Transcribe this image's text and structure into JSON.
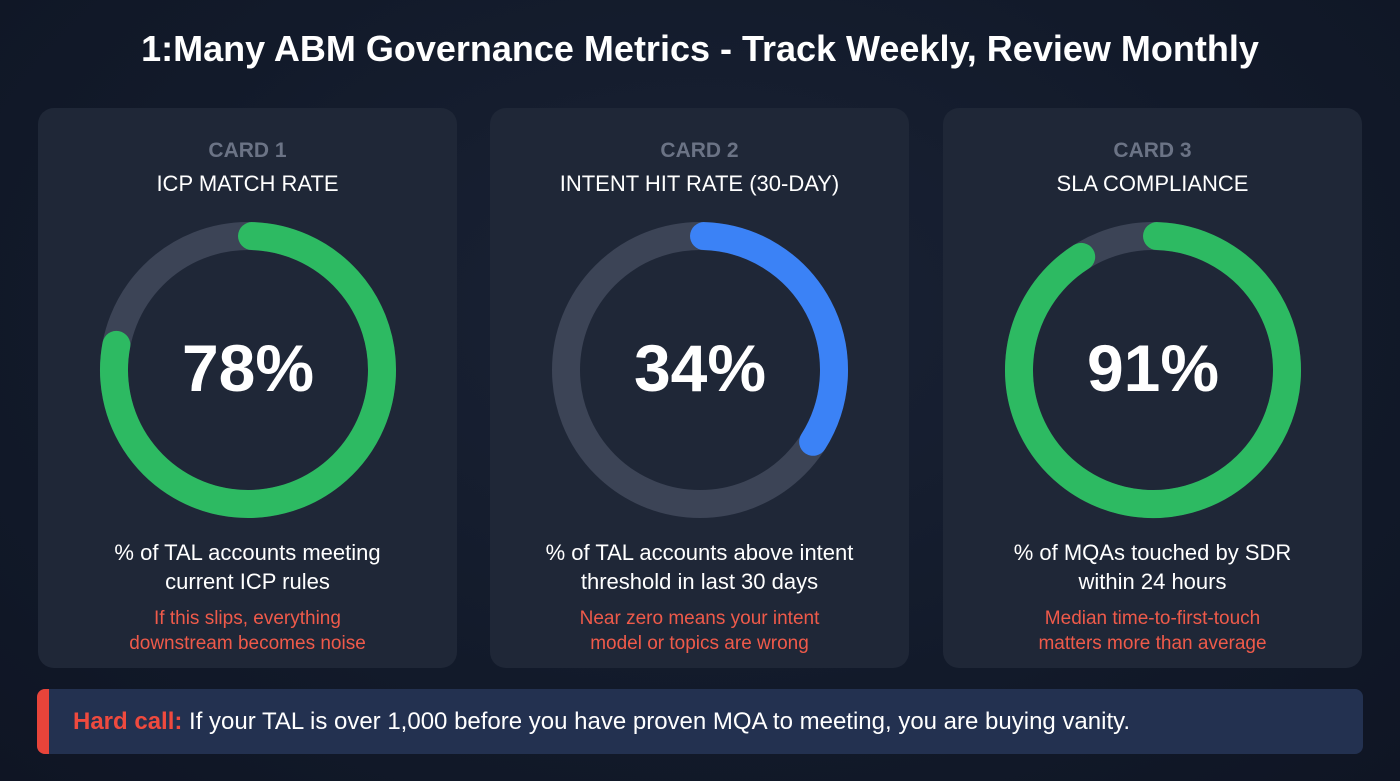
{
  "title": "1:Many ABM Governance Metrics - Track Weekly, Review Monthly",
  "cards": [
    {
      "number": "CARD 1",
      "name": "ICP MATCH RATE",
      "value_label": "78%",
      "desc1": "% of TAL accounts meeting",
      "desc2": "current ICP rules",
      "note1": "If this slips, everything",
      "note2": "downstream becomes noise"
    },
    {
      "number": "CARD 2",
      "name": "INTENT HIT RATE (30-DAY)",
      "value_label": "34%",
      "desc1": "% of TAL accounts above intent",
      "desc2": "threshold in last 30 days",
      "note1": "Near zero means your intent",
      "note2": "model or topics are wrong"
    },
    {
      "number": "CARD 3",
      "name": "SLA COMPLIANCE",
      "value_label": "91%",
      "desc1": "% of MQAs touched by SDR",
      "desc2": "within 24 hours",
      "note1": "Median time-to-first-touch",
      "note2": "matters more than average"
    }
  ],
  "banner": {
    "label": "Hard call:",
    "text": " If your TAL is over 1,000 before you have proven MQA to meeting, you are buying vanity."
  },
  "colors": {
    "track": "#3c4456",
    "green": "#2dba62",
    "blue": "#3b82f6",
    "accent_red": "#ef4a3e"
  },
  "chart_data": [
    {
      "type": "pie",
      "subtype": "donut-gauge",
      "title": "ICP MATCH RATE",
      "values": [
        78
      ],
      "max": 100,
      "color": "#2dba62"
    },
    {
      "type": "pie",
      "subtype": "donut-gauge",
      "title": "INTENT HIT RATE (30-DAY)",
      "values": [
        34
      ],
      "max": 100,
      "color": "#3b82f6"
    },
    {
      "type": "pie",
      "subtype": "donut-gauge",
      "title": "SLA COMPLIANCE",
      "values": [
        91
      ],
      "max": 100,
      "color": "#2dba62"
    }
  ]
}
